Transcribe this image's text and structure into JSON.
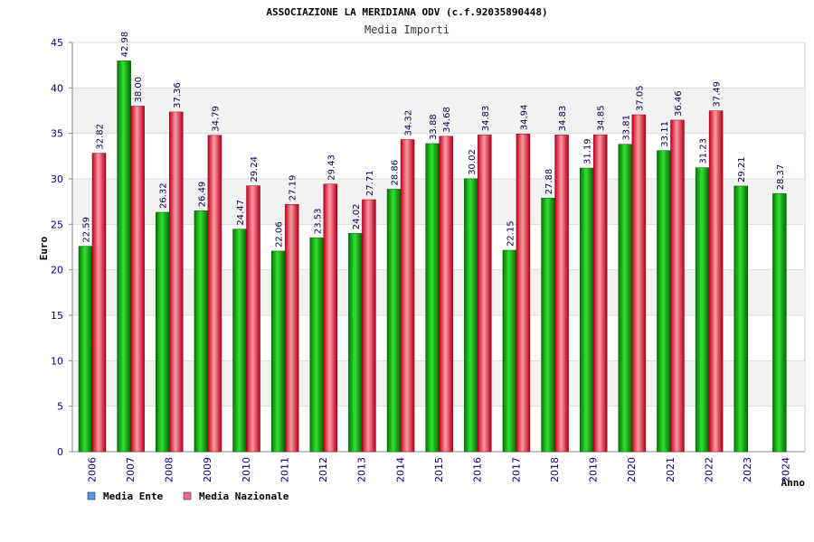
{
  "chart_data": {
    "type": "bar",
    "title": "ASSOCIAZIONE LA MERIDIANA ODV (c.f.92035890448)",
    "subtitle": "Media Importi",
    "ylabel": "Euro",
    "xlabel": "Anno",
    "ylim": [
      0,
      45
    ],
    "yticks": [
      0,
      5,
      10,
      15,
      20,
      25,
      30,
      35,
      40,
      45
    ],
    "categories": [
      "2006",
      "2007",
      "2008",
      "2009",
      "2010",
      "2011",
      "2012",
      "2013",
      "2014",
      "2015",
      "2016",
      "2017",
      "2018",
      "2019",
      "2020",
      "2021",
      "2022",
      "2023",
      "2024"
    ],
    "series": [
      {
        "name": "Media Ente",
        "color": "#00b000",
        "legend_color": "#5599ee",
        "values": [
          22.59,
          42.98,
          26.32,
          26.49,
          24.47,
          22.06,
          23.53,
          24.02,
          28.86,
          33.88,
          30.02,
          22.15,
          27.88,
          31.19,
          33.81,
          33.11,
          31.23,
          29.21,
          28.37
        ],
        "labels": [
          "22.59",
          "42.98",
          "26.32",
          "26.49",
          "24.47",
          "22.06",
          "23.53",
          "24.02",
          "28.86",
          "33.88",
          "30.02",
          "22.15",
          "27.88",
          "31.19",
          "33.81",
          "33.11",
          "31.23",
          "29.21",
          "28.37"
        ]
      },
      {
        "name": "Media Nazionale",
        "color": "#e02030",
        "legend_color": "#ee6699",
        "values": [
          32.82,
          38.0,
          37.36,
          34.79,
          29.24,
          27.19,
          29.43,
          27.71,
          34.32,
          34.68,
          34.83,
          34.94,
          34.83,
          34.85,
          37.05,
          36.46,
          37.49,
          null,
          null
        ],
        "labels": [
          "32.82",
          "38.00",
          "37.36",
          "34.79",
          "29.24",
          "27.19",
          "29.43",
          "27.71",
          "34.32",
          "34.68",
          "34.83",
          "34.94",
          "34.83",
          "34.85",
          "37.05",
          "36.46",
          "37.49",
          "",
          ""
        ]
      }
    ],
    "legend": "bottom-left",
    "grid": true
  }
}
